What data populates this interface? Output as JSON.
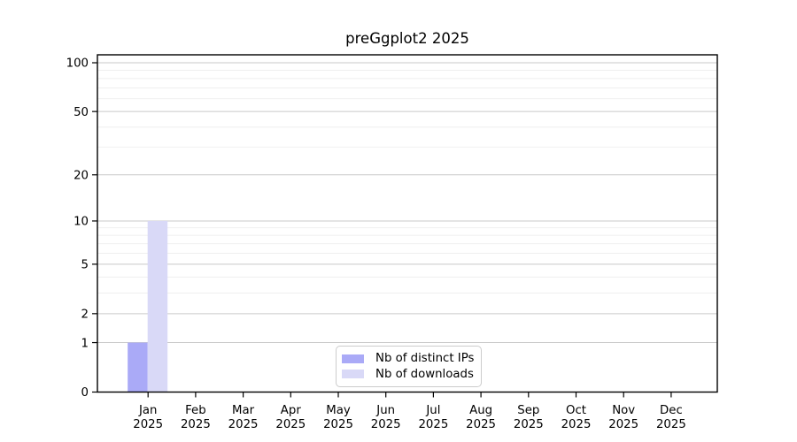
{
  "figure": {
    "background": "#ffffff"
  },
  "chart_data": {
    "type": "bar",
    "title": "preGgplot2 2025",
    "categories": [
      {
        "label": "Jan",
        "sublabel": "2025"
      },
      {
        "label": "Feb",
        "sublabel": "2025"
      },
      {
        "label": "Mar",
        "sublabel": "2025"
      },
      {
        "label": "Apr",
        "sublabel": "2025"
      },
      {
        "label": "May",
        "sublabel": "2025"
      },
      {
        "label": "Jun",
        "sublabel": "2025"
      },
      {
        "label": "Jul",
        "sublabel": "2025"
      },
      {
        "label": "Aug",
        "sublabel": "2025"
      },
      {
        "label": "Sep",
        "sublabel": "2025"
      },
      {
        "label": "Oct",
        "sublabel": "2025"
      },
      {
        "label": "Nov",
        "sublabel": "2025"
      },
      {
        "label": "Dec",
        "sublabel": "2025"
      }
    ],
    "series": [
      {
        "name": "Nb of distinct IPs",
        "color": "#aaaaf7",
        "values": [
          1,
          0,
          0,
          0,
          0,
          0,
          0,
          0,
          0,
          0,
          0,
          0
        ]
      },
      {
        "name": "Nb of downloads",
        "color": "#d9d9f7",
        "values": [
          10,
          0,
          0,
          0,
          0,
          0,
          0,
          0,
          0,
          0,
          0,
          0
        ]
      }
    ],
    "xlabel": "",
    "ylabel": "",
    "y_axis": {
      "scale": "log1p",
      "ticks": [
        0,
        1,
        2,
        5,
        10,
        20,
        50,
        100
      ],
      "minor_ticks": [
        3,
        4,
        6,
        7,
        8,
        9,
        30,
        40,
        60,
        70,
        80,
        90
      ],
      "ylim": [
        0,
        112
      ]
    },
    "grid": {
      "on": true,
      "major_color": "#c9c9c9",
      "minor_color": "#ededed"
    },
    "axis_color": "#000000",
    "legend": {
      "position": "bottom-center",
      "border_color": "#cccccc",
      "entries": [
        "Nb of distinct IPs",
        "Nb of downloads"
      ]
    }
  }
}
